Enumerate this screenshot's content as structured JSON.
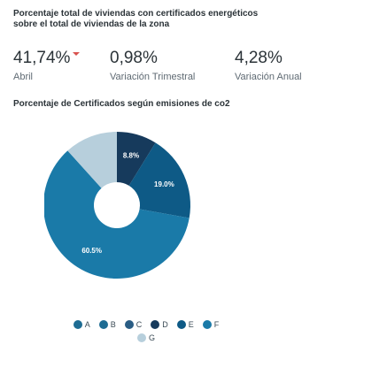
{
  "header": {
    "title": "Porcentaje total de viviendas con certificados energéticos sobre el total de viviendas de la zona"
  },
  "stats": [
    {
      "value": "41,74%",
      "label": "Abril"
    },
    {
      "value": "0,98%",
      "label": "Variación Trimestral"
    },
    {
      "value": "4,28%",
      "label": "Variación Anual"
    }
  ],
  "colors": {
    "trend_down": "#d9534f"
  },
  "chart_data": {
    "type": "pie",
    "title": "Porcentaje de Certificados según emisiones de co2",
    "categories": [
      "A",
      "B",
      "C",
      "D",
      "E",
      "F",
      "G"
    ],
    "values": [
      0,
      0,
      0,
      8.8,
      19.0,
      60.5,
      11.7
    ],
    "data_labels": [
      "",
      "",
      "",
      "8.8%",
      "19.0%",
      "60.5%",
      ""
    ],
    "colors": [
      "#1e6c93",
      "#1e6c93",
      "#2a5d84",
      "#163a5c",
      "#0e5a86",
      "#1a7aa8",
      "#b7cfdc"
    ],
    "legend_placement": "bottom"
  }
}
